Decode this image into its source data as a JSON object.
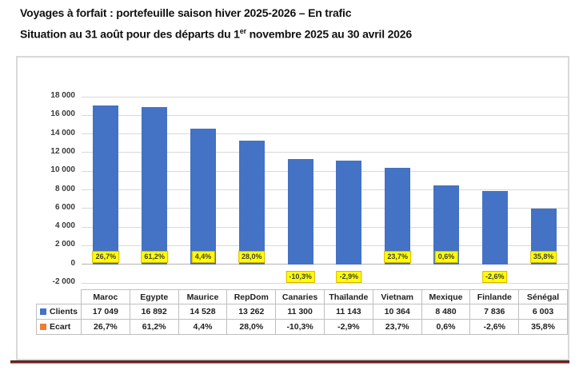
{
  "title": {
    "line1": "Voyages à forfait : portefeuille saison hiver 2025-2026 – En trafic",
    "line2_prefix": "Situation au 31 août pour des départs du 1",
    "line2_sup": "er",
    "line2_suffix": " novembre 2025 au 30 avril 2026"
  },
  "colors": {
    "clients_bar": "#4472C4",
    "ecart_marker": "#ED7D31",
    "label_highlight": "#FFFF00",
    "label_border": "#D9B500",
    "gridline": "#D9D9D9",
    "footer_line": "#7D1F1F"
  },
  "chart_data": {
    "type": "bar",
    "title": "Voyages à forfait : portefeuille saison hiver 2025-2026 – En trafic",
    "subtitle": "Situation au 31 août pour des départs du 1er novembre 2025 au 30 avril 2026",
    "categories": [
      "Maroc",
      "Egypte",
      "Maurice",
      "RepDom",
      "Canaries",
      "Thaïlande",
      "Vietnam",
      "Mexique",
      "Finlande",
      "Sénégal"
    ],
    "series": [
      {
        "name": "Clients",
        "color": "#4472C4",
        "values": [
          17049,
          16892,
          14528,
          13262,
          11300,
          11143,
          10364,
          8480,
          7836,
          6003
        ],
        "display": [
          "17 049",
          "16 892",
          "14 528",
          "13 262",
          "11 300",
          "11 143",
          "10 364",
          "8 480",
          "7 836",
          "6 003"
        ]
      },
      {
        "name": "Ecart",
        "color": "#ED7D31",
        "values": [
          26.7,
          61.2,
          4.4,
          28.0,
          -10.3,
          -2.9,
          23.7,
          0.6,
          -2.6,
          35.8
        ],
        "display": [
          "26,7%",
          "61,2%",
          "4,4%",
          "28,0%",
          "-10,3%",
          "-2,9%",
          "23,7%",
          "0,6%",
          "-2,6%",
          "35,8%"
        ]
      }
    ],
    "ylim": [
      -2000,
      18000
    ],
    "ytick_step": 2000,
    "yticks": [
      "18 000",
      "16 000",
      "14 000",
      "12 000",
      "10 000",
      "8 000",
      "6 000",
      "4 000",
      "2 000",
      "0",
      "-2 000"
    ],
    "grid": true,
    "legend_position": "data-table-left-column",
    "data_labels": "Ecart percentages shown near axis with yellow highlight; negatives below axis"
  }
}
